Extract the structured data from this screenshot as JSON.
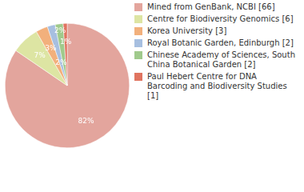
{
  "chart_data": {
    "type": "pie",
    "categories": [
      "Mined from GenBank, NCBI [66]",
      "Centre for Biodiversity Genomics [6]",
      "Korea University [3]",
      "Royal Botanic Garden, Edinburgh [2]",
      "Chinese Academy of Sciences, South China Botanical Garden [2]",
      "Paul Hebert Centre for DNA Barcoding and Biodiversity Studies [1]"
    ],
    "values": [
      82,
      7,
      3,
      2,
      2,
      1
    ],
    "value_labels": [
      "82%",
      "7%",
      "3%",
      "2%",
      "2%",
      "1%"
    ],
    "colors": [
      "#e3a59d",
      "#dde5a3",
      "#f2b07c",
      "#a7bfe0",
      "#a0ca8c",
      "#e07460"
    ],
    "data_labels": true,
    "legend": "right"
  }
}
